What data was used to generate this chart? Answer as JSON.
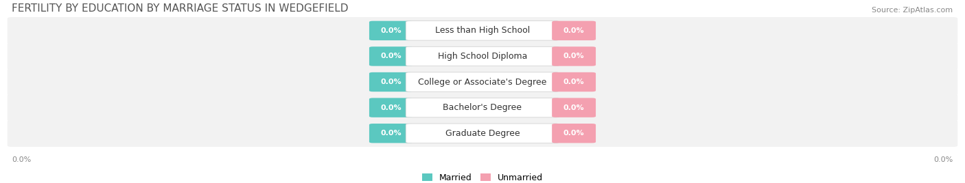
{
  "title": "FERTILITY BY EDUCATION BY MARRIAGE STATUS IN WEDGEFIELD",
  "source": "Source: ZipAtlas.com",
  "categories": [
    "Less than High School",
    "High School Diploma",
    "College or Associate's Degree",
    "Bachelor's Degree",
    "Graduate Degree"
  ],
  "married_values": [
    0.0,
    0.0,
    0.0,
    0.0,
    0.0
  ],
  "unmarried_values": [
    0.0,
    0.0,
    0.0,
    0.0,
    0.0
  ],
  "married_color": "#5BC8C0",
  "unmarried_color": "#F4A0B0",
  "bar_bg_color": "#E8E8E8",
  "row_bg_color": "#F2F2F2",
  "label_bg_color": "#FFFFFF",
  "title_fontsize": 11,
  "source_fontsize": 8,
  "label_fontsize": 9,
  "value_fontsize": 8,
  "legend_fontsize": 9,
  "xlim": [
    -1.0,
    1.0
  ],
  "bar_max": 1.0,
  "min_bar_width": 0.08,
  "figsize": [
    14.06,
    2.68
  ],
  "dpi": 100
}
